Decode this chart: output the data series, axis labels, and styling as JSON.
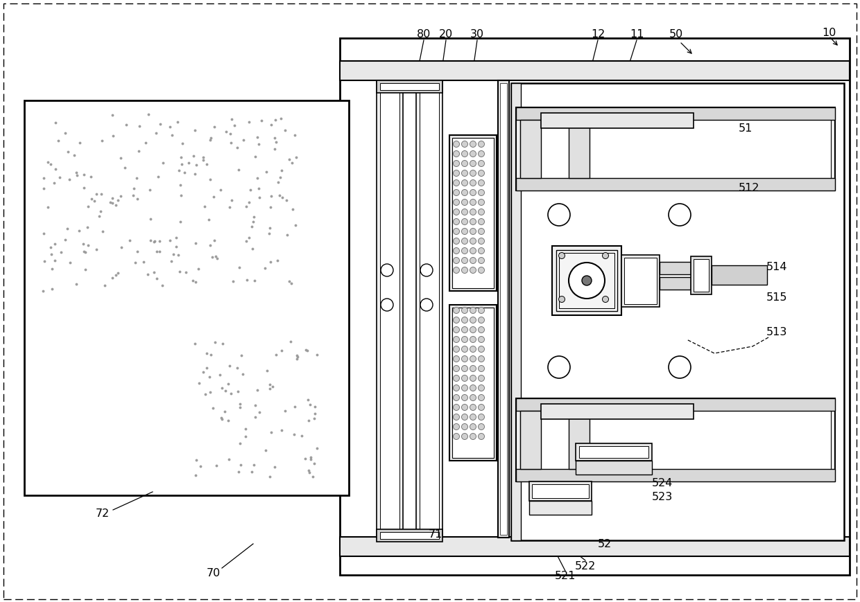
{
  "background_color": "#ffffff",
  "fig_width": 12.4,
  "fig_height": 8.69
}
